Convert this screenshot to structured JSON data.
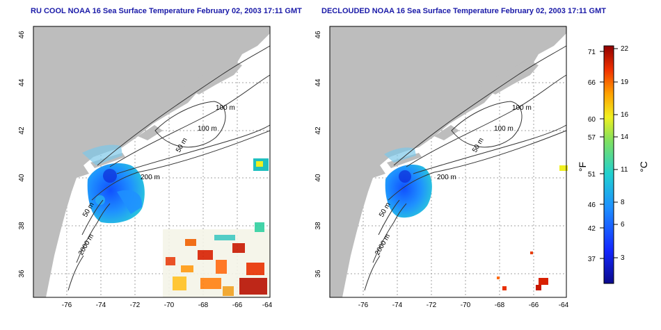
{
  "left_panel": {
    "title": "RU COOL NOAA 16 Sea Surface Temperature February 02, 2003 17:11 GMT",
    "contour_labels": [
      "100 m",
      "100 m",
      "50 m",
      "200 m",
      "50 m",
      "2000 m"
    ]
  },
  "right_panel": {
    "title": "DECLOUDED NOAA 16 Sea Surface Temperature February 02, 2003 17:11 GMT",
    "contour_labels": [
      "100 m",
      "100 m",
      "50 m",
      "200 m",
      "50 m",
      "2000 m"
    ]
  },
  "axes": {
    "x_ticks": [
      "-76",
      "-74",
      "-72",
      "-70",
      "-68",
      "-66",
      "-64"
    ],
    "y_ticks": [
      "36",
      "38",
      "40",
      "42",
      "44",
      "46"
    ]
  },
  "colorbar": {
    "unit_f": "°F",
    "unit_c": "°C",
    "f_ticks": [
      "71",
      "66",
      "60",
      "57",
      "51",
      "46",
      "42",
      "37"
    ],
    "c_ticks": [
      "22",
      "19",
      "16",
      "14",
      "11",
      "8",
      "6",
      "3"
    ]
  },
  "colors": {
    "land": "#bdbdbd",
    "ocean": "#ffffff",
    "title": "#1a1aa8",
    "grid": "#a0a0a0"
  }
}
